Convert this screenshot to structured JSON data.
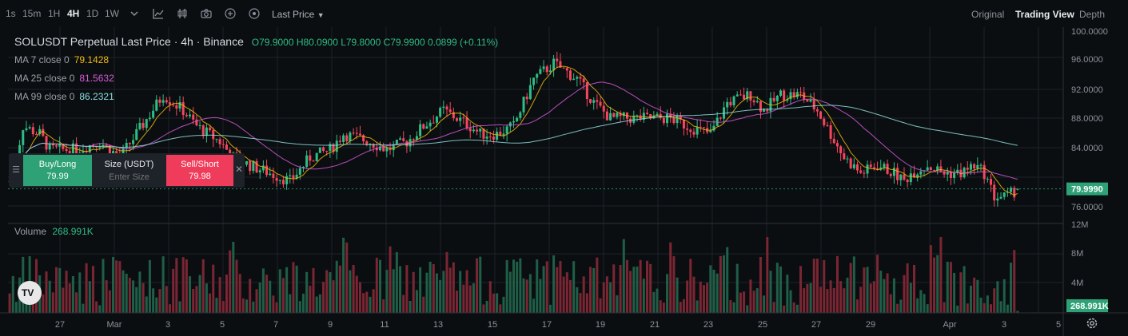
{
  "toolbar": {
    "timeframes": [
      {
        "label": "1s"
      },
      {
        "label": "15m"
      },
      {
        "label": "1H"
      },
      {
        "label": "4H",
        "active": true
      },
      {
        "label": "1D"
      },
      {
        "label": "1W"
      }
    ],
    "price_type": "Last Price",
    "views": [
      {
        "label": "Original"
      },
      {
        "label": "Trading View",
        "active": true
      },
      {
        "label": "Depth"
      }
    ],
    "icons": [
      "chevron-down-icon",
      "indicator-icon",
      "chart-type-icon",
      "camera-icon",
      "add-icon",
      "add-alt-icon"
    ]
  },
  "header": {
    "title": "SOLUSDT Perpetual Last Price · 4h · Binance",
    "ohlc": "O79.9000 H80.0900 L79.8000 C79.9900 0.0899 (+0.11%)"
  },
  "indicators": [
    {
      "label": "MA 7 close 0",
      "value": "79.1428",
      "color": "#f0b90b"
    },
    {
      "label": "MA 25 close 0",
      "value": "81.5632",
      "color": "#d45bd8"
    },
    {
      "label": "MA 99 close 0",
      "value": "86.2321",
      "color": "#8fdfe0"
    }
  ],
  "trade_panel": {
    "buy_label": "Buy/Long",
    "buy_price": "79.99",
    "size_label": "Size (USDT)",
    "size_placeholder": "Enter Size",
    "sell_label": "Sell/Short",
    "sell_price": "79.98"
  },
  "volume_legend": {
    "label": "Volume",
    "value": "268.991K"
  },
  "price_axis": {
    "ticks": [
      "100.0000",
      "96.0000",
      "92.0000",
      "88.0000",
      "84.0000",
      "76.0000"
    ],
    "current_price": "79.9990"
  },
  "volume_axis": {
    "ticks": [
      "12M",
      "8M",
      "4M"
    ],
    "current_volume": "268.991K"
  },
  "time_axis": {
    "ticks": [
      "27",
      "Mar",
      "3",
      "5",
      "7",
      "9",
      "11",
      "13",
      "15",
      "17",
      "19",
      "21",
      "23",
      "25",
      "27",
      "29",
      "Apr",
      "3",
      "5"
    ]
  },
  "colors": {
    "up": "#2ebd85",
    "down": "#f6465d",
    "up_volume": "#1f5e47",
    "down_volume": "#7a2633",
    "grid": "#1e2329"
  },
  "chart_data": {
    "type": "candlestick",
    "price_ylim": [
      76,
      100
    ],
    "volume_ylim": [
      0,
      12
    ],
    "volume_unit": "M",
    "anchors": [
      [
        0,
        81
      ],
      [
        2,
        84
      ],
      [
        4,
        88
      ],
      [
        9,
        87
      ],
      [
        12,
        85
      ],
      [
        20,
        85
      ],
      [
        27,
        86
      ],
      [
        33,
        84
      ],
      [
        38,
        87
      ],
      [
        46,
        92
      ],
      [
        52,
        90
      ],
      [
        56,
        88
      ],
      [
        63,
        86
      ],
      [
        67,
        84
      ],
      [
        72,
        83
      ],
      [
        78,
        82
      ],
      [
        84,
        81
      ],
      [
        90,
        84
      ],
      [
        96,
        85
      ],
      [
        100,
        87
      ],
      [
        108,
        86
      ],
      [
        113,
        85
      ],
      [
        119,
        86
      ],
      [
        124,
        88
      ],
      [
        130,
        90
      ],
      [
        134,
        89
      ],
      [
        138,
        88
      ],
      [
        141,
        87
      ],
      [
        146,
        87
      ],
      [
        151,
        88
      ],
      [
        157,
        94
      ],
      [
        163,
        96
      ],
      [
        170,
        94
      ],
      [
        175,
        91
      ],
      [
        180,
        89
      ],
      [
        187,
        89
      ],
      [
        192,
        89
      ],
      [
        198,
        89
      ],
      [
        203,
        88
      ],
      [
        210,
        87
      ],
      [
        215,
        91
      ],
      [
        222,
        92
      ],
      [
        226,
        90
      ],
      [
        231,
        92
      ],
      [
        237,
        92
      ],
      [
        242,
        90
      ],
      [
        246,
        87
      ],
      [
        250,
        84
      ],
      [
        255,
        82
      ],
      [
        260,
        83
      ],
      [
        265,
        82
      ],
      [
        268,
        81
      ],
      [
        270,
        82
      ],
      [
        275,
        83
      ],
      [
        280,
        82
      ],
      [
        285,
        82
      ],
      [
        289,
        83
      ],
      [
        292,
        82
      ],
      [
        295,
        79
      ],
      [
        299,
        79
      ],
      [
        302,
        80
      ]
    ],
    "current_volume": 0.269
  }
}
